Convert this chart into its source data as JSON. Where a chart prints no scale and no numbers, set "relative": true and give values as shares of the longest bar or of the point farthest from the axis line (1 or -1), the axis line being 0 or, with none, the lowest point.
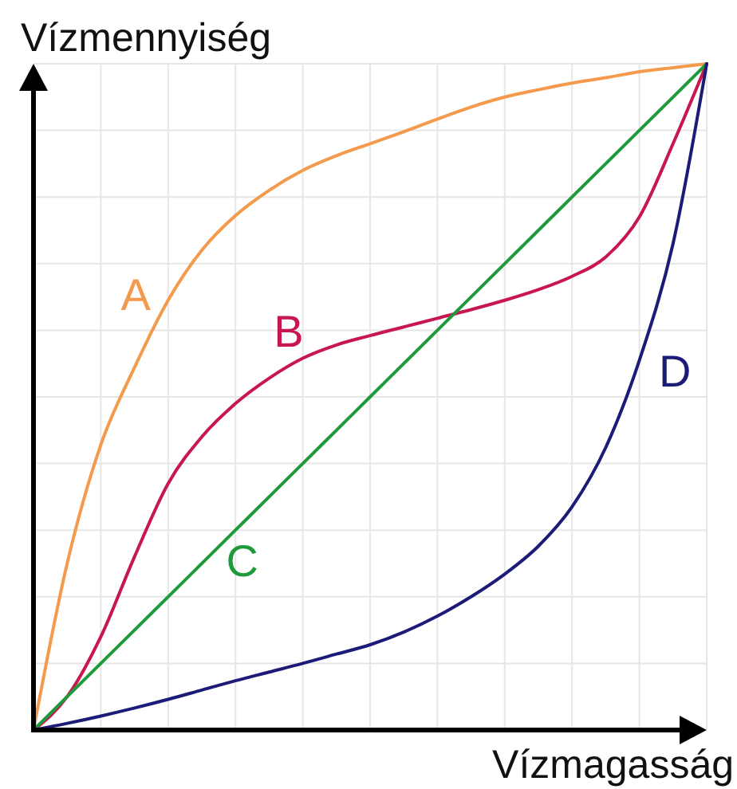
{
  "chart_data": {
    "type": "line",
    "relative": true,
    "xlabel": "Vízmagasság",
    "ylabel": "Vízmennyiség",
    "grid": true,
    "categories": [
      null,
      null,
      null,
      null,
      null,
      null,
      null,
      null,
      null,
      null,
      null,
      null,
      null,
      null,
      null,
      null,
      null,
      null,
      null,
      null,
      null
    ],
    "series": [
      {
        "name": "A",
        "color": "#f39a4c",
        "values": [
          0,
          0.25,
          0.428,
          0.544,
          0.645,
          0.72,
          0.772,
          0.81,
          0.84,
          0.862,
          0.88,
          0.898,
          0.917,
          0.935,
          0.95,
          0.961,
          0.971,
          0.979,
          0.988,
          0.994,
          1
        ]
      },
      {
        "name": "B",
        "color": "#c8174f",
        "values": [
          0,
          0.05,
          0.14,
          0.26,
          0.37,
          0.44,
          0.49,
          0.528,
          0.558,
          0.578,
          0.592,
          0.605,
          0.618,
          0.631,
          0.645,
          0.661,
          0.681,
          0.71,
          0.77,
          0.88,
          1
        ]
      },
      {
        "name": "C",
        "color": "#1f9a3a",
        "values": [
          0,
          0.05,
          0.1,
          0.15,
          0.2,
          0.25,
          0.3,
          0.35,
          0.4,
          0.45,
          0.5,
          0.55,
          0.6,
          0.65,
          0.7,
          0.75,
          0.8,
          0.85,
          0.9,
          0.95,
          1
        ]
      },
      {
        "name": "D",
        "color": "#1c1c78",
        "values": [
          0,
          0.01,
          0.021,
          0.033,
          0.046,
          0.06,
          0.074,
          0.087,
          0.1,
          0.114,
          0.128,
          0.147,
          0.171,
          0.2,
          0.234,
          0.276,
          0.335,
          0.424,
          0.555,
          0.73,
          1
        ]
      }
    ]
  }
}
